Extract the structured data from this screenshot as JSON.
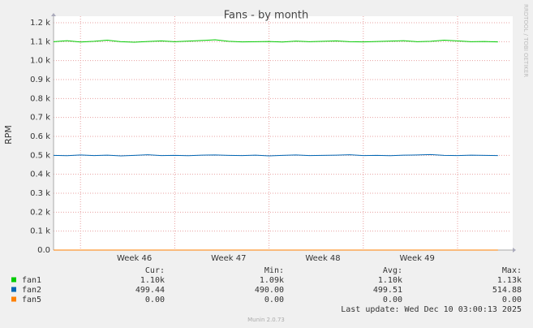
{
  "chart_data": {
    "type": "line",
    "title": "Fans - by month",
    "ylabel": "RPM",
    "categories": [
      null,
      null,
      null,
      null,
      null,
      null,
      "Week 46",
      null,
      null,
      null,
      null,
      null,
      null,
      "Week 47",
      null,
      null,
      null,
      null,
      null,
      null,
      "Week 48",
      null,
      null,
      null,
      null,
      null,
      null,
      "Week 49",
      null,
      null,
      null,
      null,
      null,
      null
    ],
    "series": [
      {
        "name": "fan1",
        "color": "#00cc00",
        "values": [
          1100,
          1105,
          1098,
          1102,
          1108,
          1100,
          1097,
          1101,
          1104,
          1100,
          1103,
          1106,
          1110,
          1102,
          1099,
          1100,
          1101,
          1098,
          1103,
          1100,
          1102,
          1104,
          1100,
          1099,
          1101,
          1103,
          1105,
          1100,
          1102,
          1108,
          1104,
          1100,
          1101,
          1099
        ]
      },
      {
        "name": "fan2",
        "color": "#0066b3",
        "values": [
          500,
          498,
          502,
          499,
          501,
          497,
          500,
          503,
          499,
          500,
          498,
          501,
          502,
          500,
          499,
          501,
          497,
          500,
          502,
          499,
          500,
          501,
          503,
          499,
          500,
          498,
          501,
          502,
          504,
          500,
          499,
          501,
          500,
          499
        ]
      },
      {
        "name": "fan5",
        "color": "#ff8000",
        "values": [
          0,
          0,
          0,
          0,
          0,
          0,
          0,
          0,
          0,
          0,
          0,
          0,
          0,
          0,
          0,
          0,
          0,
          0,
          0,
          0,
          0,
          0,
          0,
          0,
          0,
          0,
          0,
          0,
          0,
          0,
          0,
          0,
          0,
          0
        ]
      }
    ],
    "ylim": [
      0,
      1200
    ],
    "yticks": [
      {
        "value": 0,
        "label": "0.0"
      },
      {
        "value": 100,
        "label": "0.1 k"
      },
      {
        "value": 200,
        "label": "0.2 k"
      },
      {
        "value": 300,
        "label": "0.3 k"
      },
      {
        "value": 400,
        "label": "0.4 k"
      },
      {
        "value": 500,
        "label": "0.5 k"
      },
      {
        "value": 600,
        "label": "0.6 k"
      },
      {
        "value": 700,
        "label": "0.7 k"
      },
      {
        "value": 800,
        "label": "0.8 k"
      },
      {
        "value": 900,
        "label": "0.9 k"
      },
      {
        "value": 1000,
        "label": "1.0 k"
      },
      {
        "value": 1100,
        "label": "1.1 k"
      },
      {
        "value": 1200,
        "label": "1.2 k"
      }
    ],
    "grid": true
  },
  "summary": {
    "headers": [
      "Cur:",
      "Min:",
      "Avg:",
      "Max:"
    ],
    "rows": [
      [
        "1.10k",
        "1.09k",
        "1.10k",
        "1.13k"
      ],
      [
        "499.44",
        "490.00",
        "499.51",
        "514.88"
      ],
      [
        "0.00",
        "0.00",
        "0.00",
        "0.00"
      ]
    ]
  },
  "last_update": "Last update: Wed Dec 10 03:00:13 2025",
  "footer": "Munin 2.0.73",
  "watermark": "RRDTOOL / TOBI OETIKER"
}
